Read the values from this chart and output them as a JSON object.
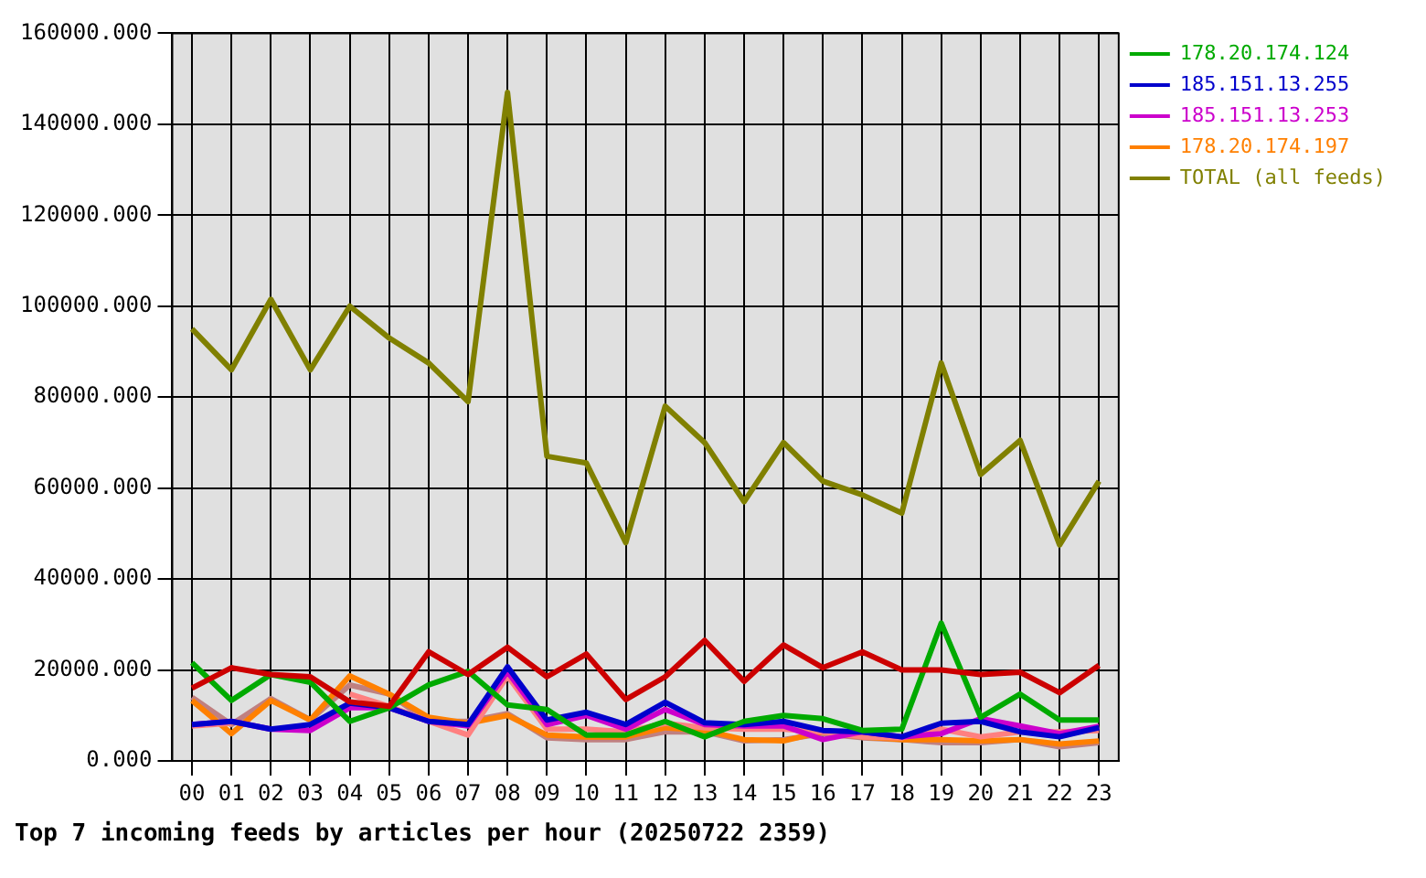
{
  "chart_data": {
    "type": "line",
    "title": "Top 7 incoming feeds by articles per hour (20250722 2359)",
    "categories": [
      "00",
      "01",
      "02",
      "03",
      "04",
      "05",
      "06",
      "07",
      "08",
      "09",
      "10",
      "11",
      "12",
      "13",
      "14",
      "15",
      "16",
      "17",
      "18",
      "19",
      "20",
      "21",
      "22",
      "23"
    ],
    "series": [
      {
        "color": "#cc0000",
        "values": [
          16000,
          20500,
          19000,
          18500,
          13000,
          12000,
          24000,
          19000,
          25000,
          18500,
          23500,
          13500,
          18500,
          26500,
          17500,
          25500,
          20500,
          24000,
          20000,
          20000,
          19000,
          19500,
          15000,
          21000
        ]
      },
      {
        "name": "178.20.174.124",
        "color": "#00aa00",
        "values": [
          21600,
          13300,
          19000,
          17300,
          8700,
          11700,
          16700,
          19700,
          12300,
          11300,
          5700,
          5700,
          8700,
          5300,
          8700,
          10000,
          9300,
          6700,
          7000,
          30300,
          9600,
          14700,
          9000,
          9000
        ]
      },
      {
        "name": "185.151.13.255",
        "color": "#0000cc",
        "values": [
          8000,
          8700,
          7000,
          8000,
          12700,
          11700,
          8700,
          8000,
          20700,
          9000,
          10700,
          8000,
          12900,
          8400,
          8000,
          8700,
          6700,
          6400,
          5300,
          8300,
          8700,
          6400,
          5300,
          7300
        ]
      },
      {
        "name": "185.151.13.253",
        "color": "#cc00cc",
        "values": [
          8000,
          8700,
          7000,
          6700,
          11700,
          11700,
          8700,
          7700,
          19600,
          8000,
          10000,
          7000,
          11300,
          8000,
          7700,
          7700,
          4700,
          6400,
          5300,
          6000,
          9300,
          7700,
          6000,
          7600
        ]
      },
      {
        "color": "#ff8080",
        "values": [
          7700,
          8300,
          null,
          null,
          14700,
          12000,
          8700,
          5700,
          18700,
          7000,
          7000,
          6400,
          8300,
          7300,
          7000,
          7000,
          6400,
          5300,
          5100,
          7000,
          5300,
          6400,
          6400,
          6700
        ]
      },
      {
        "name": "178.20.174.197",
        "color": "#ff8000",
        "values": [
          13300,
          6000,
          13300,
          9000,
          18700,
          14700,
          9600,
          8300,
          10000,
          5700,
          5300,
          5300,
          7300,
          6700,
          4700,
          4400,
          6400,
          5300,
          4700,
          4700,
          4400,
          4700,
          3700,
          4400
        ]
      },
      {
        "color": "#c08080",
        "values": [
          14000,
          8000,
          13700,
          9000,
          16700,
          14700,
          8700,
          8700,
          10400,
          5100,
          4700,
          4700,
          6400,
          6400,
          4400,
          4700,
          6000,
          5100,
          4700,
          4000,
          4000,
          4700,
          3100,
          4000
        ]
      },
      {
        "name": "TOTAL (all feeds)",
        "color": "#808000",
        "values": [
          95000,
          86000,
          101500,
          86000,
          100000,
          93000,
          87500,
          79000,
          147000,
          67000,
          65500,
          48000,
          78000,
          70000,
          57000,
          70000,
          61500,
          58500,
          54500,
          87500,
          63000,
          70500,
          47500,
          61500
        ]
      }
    ],
    "ylim": [
      0,
      160000
    ],
    "yticks": [
      {
        "value": 0,
        "label": "0.000"
      },
      {
        "value": 20000,
        "label": "20000.000"
      },
      {
        "value": 40000,
        "label": "40000.000"
      },
      {
        "value": 60000,
        "label": "60000.000"
      },
      {
        "value": 80000,
        "label": "80000.000"
      },
      {
        "value": 100000,
        "label": "100000.000"
      },
      {
        "value": 120000,
        "label": "120000.000"
      },
      {
        "value": 140000,
        "label": "140000.000"
      },
      {
        "value": 160000,
        "label": "160000.000"
      }
    ],
    "grid": true,
    "legend": "top right",
    "marker": "none",
    "line_style": "solid"
  }
}
